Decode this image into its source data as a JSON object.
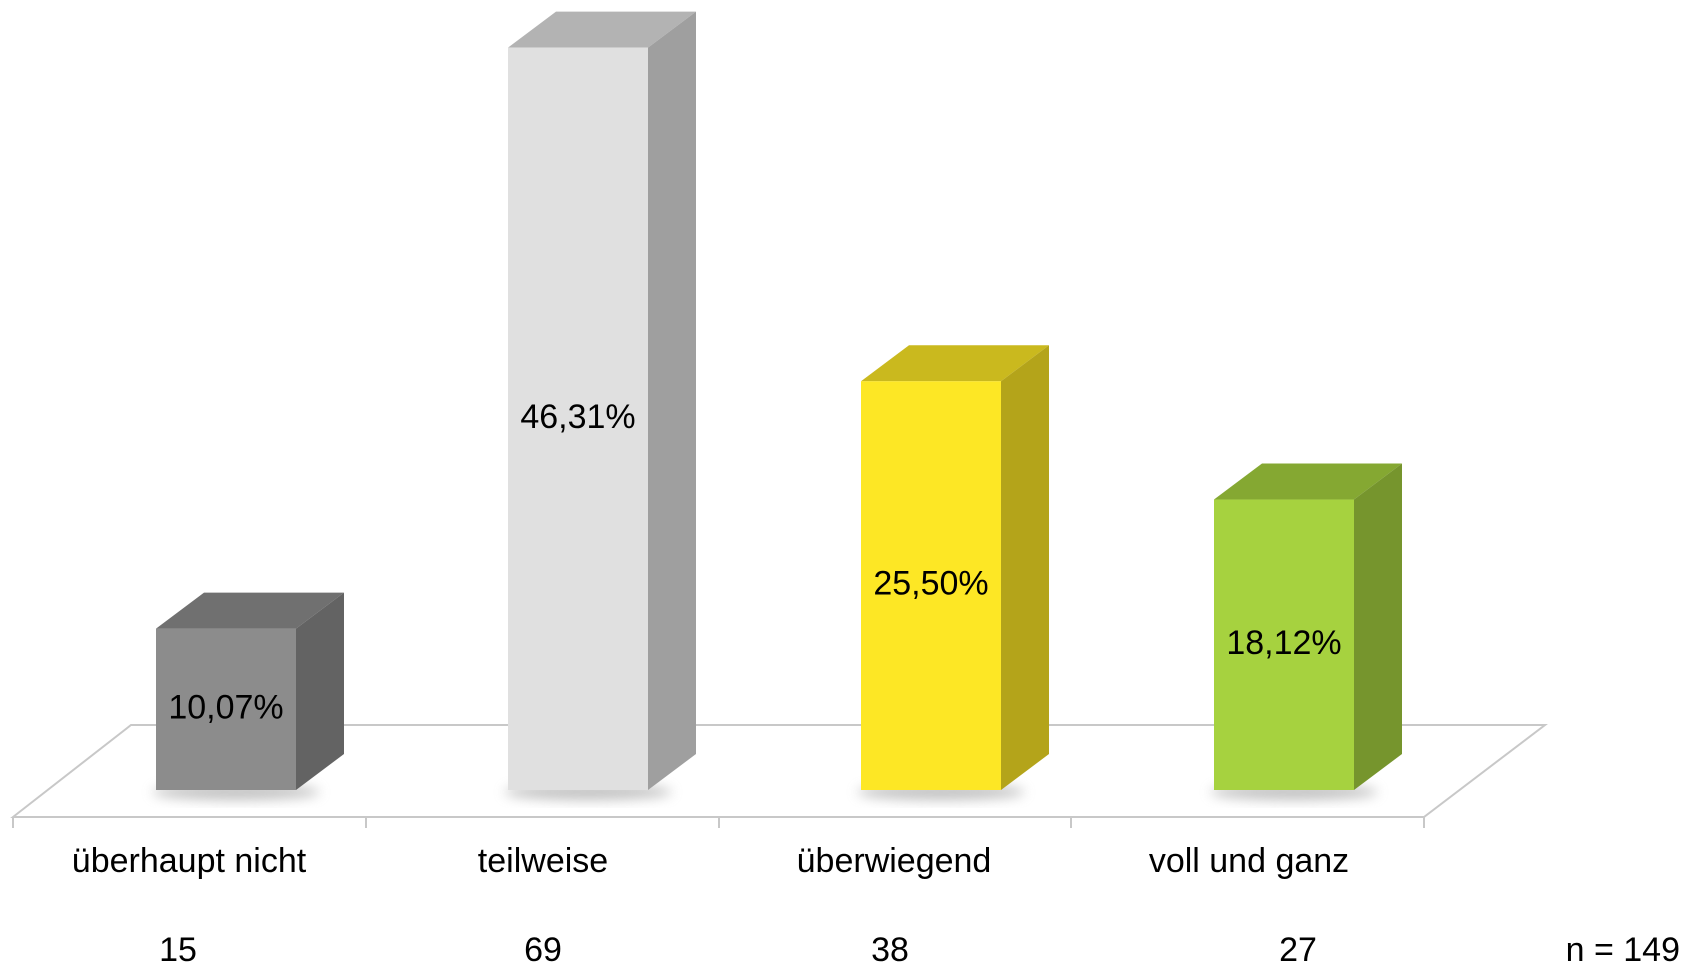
{
  "chart_data": {
    "type": "bar3d",
    "categories": [
      "überhaupt nicht",
      "teilweise",
      "überwiegend",
      "voll und ganz"
    ],
    "values": [
      10.07,
      46.31,
      25.5,
      18.12
    ],
    "value_labels": [
      "10,07%",
      "46,31%",
      "25,50%",
      "18,12%"
    ],
    "counts": [
      15,
      69,
      38,
      27
    ],
    "note": "n = 149",
    "colors": [
      "#8c8c8c",
      "#e0e0e0",
      "#fde725",
      "#a6d23f"
    ]
  }
}
